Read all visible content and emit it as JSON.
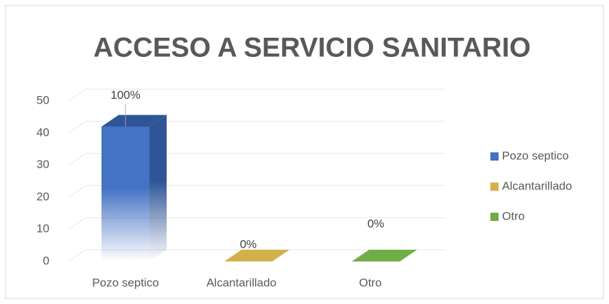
{
  "chart_data": {
    "type": "bar3d",
    "title": "ACCESO A SERVICIO SANITARIO",
    "categories": [
      "Pozo septico",
      "Alcantarillado",
      "Otro"
    ],
    "values": [
      42,
      0,
      0
    ],
    "colors": [
      "#4472c4",
      "#d4b04c",
      "#70ad47"
    ],
    "annotations": [
      "100%",
      "0%",
      "0%"
    ],
    "ylim": [
      0,
      50
    ],
    "yticks": [
      0,
      10,
      20,
      30,
      40,
      50
    ],
    "grid": true,
    "legend": "right"
  }
}
